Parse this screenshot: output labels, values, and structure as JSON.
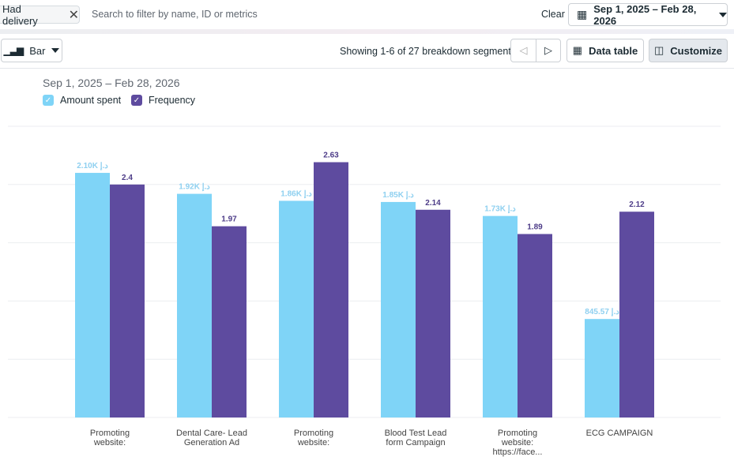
{
  "filter": {
    "chip_label": "Had delivery",
    "search_placeholder": "Search to filter by name, ID or metrics",
    "clear_label": "Clear",
    "date_range": "Sep 1, 2025 – Feb 28, 2026"
  },
  "toolbar": {
    "chart_type": "Bar",
    "showing": "Showing 1-6 of 27 breakdown segments",
    "data_table": "Data table",
    "customize": "Customize"
  },
  "colors": {
    "amount": "#7fd4f7",
    "frequency": "#5e4b9f",
    "amount_label": "#8fd0f0",
    "frequency_label": "#4d3c88"
  },
  "chart_data": {
    "type": "bar",
    "title": "Sep 1, 2025 – Feb 28, 2026",
    "categories": [
      [
        "Promoting",
        "website:"
      ],
      [
        "Dental Care- Lead",
        "Generation Ad"
      ],
      [
        "Promoting",
        "website:"
      ],
      [
        "Blood Test Lead",
        "form Campaign"
      ],
      [
        "Promoting",
        "website:",
        "https://face..."
      ],
      [
        "ECG CAMPAIGN"
      ]
    ],
    "currency": "د.إ",
    "series": [
      {
        "name": "Amount spent",
        "values": [
          2100,
          1920,
          1860,
          1850,
          1730,
          845.57
        ],
        "labels": [
          "2.10K",
          "1.92K",
          "1.86K",
          "1.85K",
          "1.73K",
          "845.57"
        ],
        "axis_max": 2500
      },
      {
        "name": "Frequency",
        "values": [
          2.4,
          1.97,
          2.63,
          2.14,
          1.89,
          2.12
        ],
        "labels": [
          "2.4",
          "1.97",
          "2.63",
          "2.14",
          "1.89",
          "2.12"
        ],
        "axis_max": 3
      }
    ],
    "legend": "top-left",
    "grid": true
  }
}
